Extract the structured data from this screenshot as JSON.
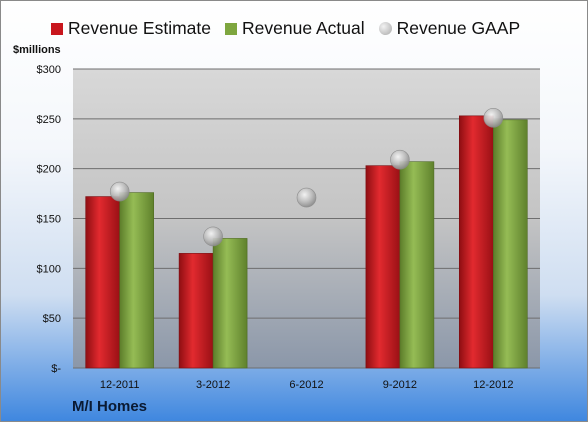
{
  "legend": [
    {
      "label": "Revenue Estimate",
      "color": "#c8161d",
      "shape": "square"
    },
    {
      "label": "Revenue Actual",
      "color": "#7ea63f",
      "shape": "square"
    },
    {
      "label": "Revenue GAAP",
      "color": "#b4b4b4",
      "shape": "circle"
    }
  ],
  "unit_label": "$millions",
  "company": "M/I Homes",
  "chart_data": {
    "type": "bar",
    "categories": [
      "12-2011",
      "3-2012",
      "6-2012",
      "9-2012",
      "12-2012"
    ],
    "series": [
      {
        "name": "Revenue Estimate",
        "type": "bar",
        "color": "#c8161d",
        "values": [
          172,
          115,
          null,
          203,
          253
        ]
      },
      {
        "name": "Revenue Actual",
        "type": "bar",
        "color": "#7ea63f",
        "values": [
          176,
          130,
          null,
          207,
          249
        ]
      },
      {
        "name": "Revenue GAAP",
        "type": "scatter",
        "color": "#b4b4b4",
        "values": [
          177,
          132,
          171,
          209,
          251
        ]
      }
    ],
    "ylabel": "$millions",
    "ylim": [
      0,
      300
    ],
    "yticks": [
      0,
      50,
      100,
      150,
      200,
      250,
      300
    ],
    "ytick_labels": [
      "$-",
      "$50",
      "$100",
      "$150",
      "$200",
      "$250",
      "$300"
    ],
    "grid": true,
    "legend_position": "top"
  }
}
